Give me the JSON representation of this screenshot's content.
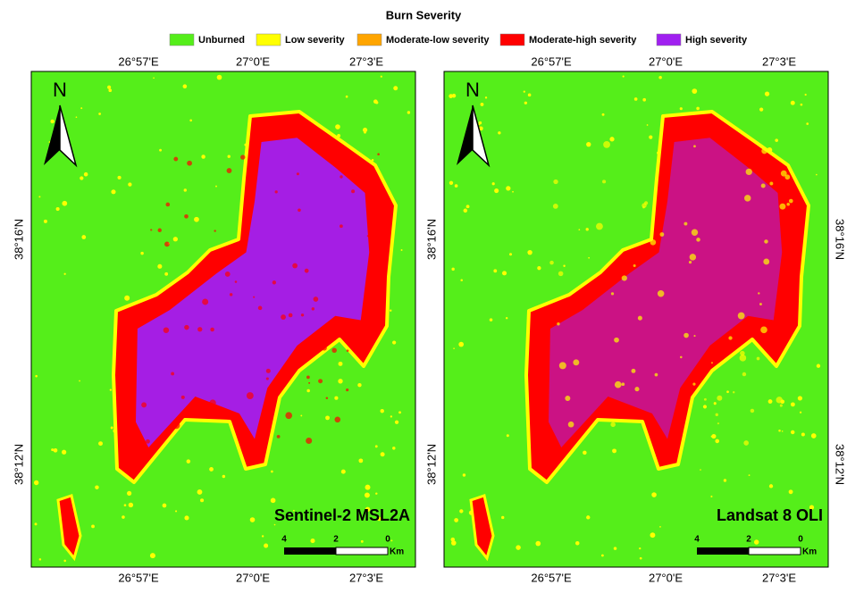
{
  "title": "Burn Severity",
  "legend": [
    {
      "label": "Unburned",
      "color": "#55ee1a"
    },
    {
      "label": "Low severity",
      "color": "#ffff00"
    },
    {
      "label": "Moderate-low severity",
      "color": "#ffa500"
    },
    {
      "label": "Moderate-high severity",
      "color": "#ff0000"
    },
    {
      "label": "High severity",
      "color": "#a020f0"
    }
  ],
  "panels": [
    {
      "name": "Sentinel-2 MSL2A",
      "north": "N",
      "x_labels": [
        "26°57'E",
        "27°0'E",
        "27°3'E"
      ],
      "y_labels": [
        "38°16'N",
        "38°12'N"
      ],
      "scale_labels": [
        "4",
        "2",
        "0"
      ],
      "scale_unit": "Km"
    },
    {
      "name": "Landsat 8 OLI",
      "north": "N",
      "x_labels": [
        "26°57'E",
        "27°0'E",
        "27°3'E"
      ],
      "y_labels": [
        "38°16'N",
        "38°12'N"
      ],
      "scale_labels": [
        "4",
        "2",
        "0"
      ],
      "scale_unit": "Km"
    }
  ]
}
